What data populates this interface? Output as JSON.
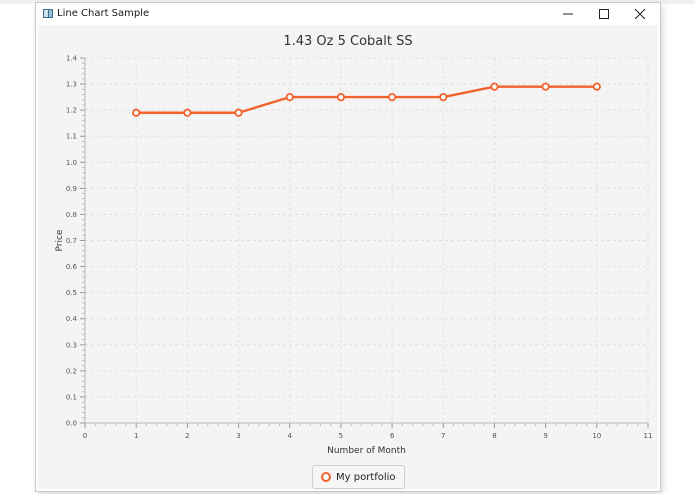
{
  "window": {
    "title": "Line Chart Sample",
    "controls": {
      "minimize": "minimize",
      "maximize": "maximize",
      "close": "close"
    }
  },
  "legend": {
    "label": "My portfolio"
  },
  "chart_data": {
    "type": "line",
    "title": "1.43 Oz 5 Cobalt SS",
    "xlabel": "Number of Month",
    "ylabel": "Price",
    "xlim": [
      0,
      11
    ],
    "ylim": [
      0.0,
      1.4
    ],
    "x_ticks": [
      0,
      1,
      2,
      3,
      4,
      5,
      6,
      7,
      8,
      9,
      10,
      11
    ],
    "y_ticks": [
      0.0,
      0.1,
      0.2,
      0.3,
      0.4,
      0.5,
      0.6,
      0.7,
      0.8,
      0.9,
      1.0,
      1.1,
      1.2,
      1.3,
      1.4
    ],
    "grid": true,
    "legend_position": "bottom",
    "series": [
      {
        "name": "My portfolio",
        "color": "#f3622d",
        "x": [
          1,
          2,
          3,
          4,
          5,
          6,
          7,
          8,
          9,
          10
        ],
        "y": [
          1.19,
          1.19,
          1.19,
          1.25,
          1.25,
          1.25,
          1.25,
          1.29,
          1.29,
          1.29
        ]
      }
    ]
  }
}
